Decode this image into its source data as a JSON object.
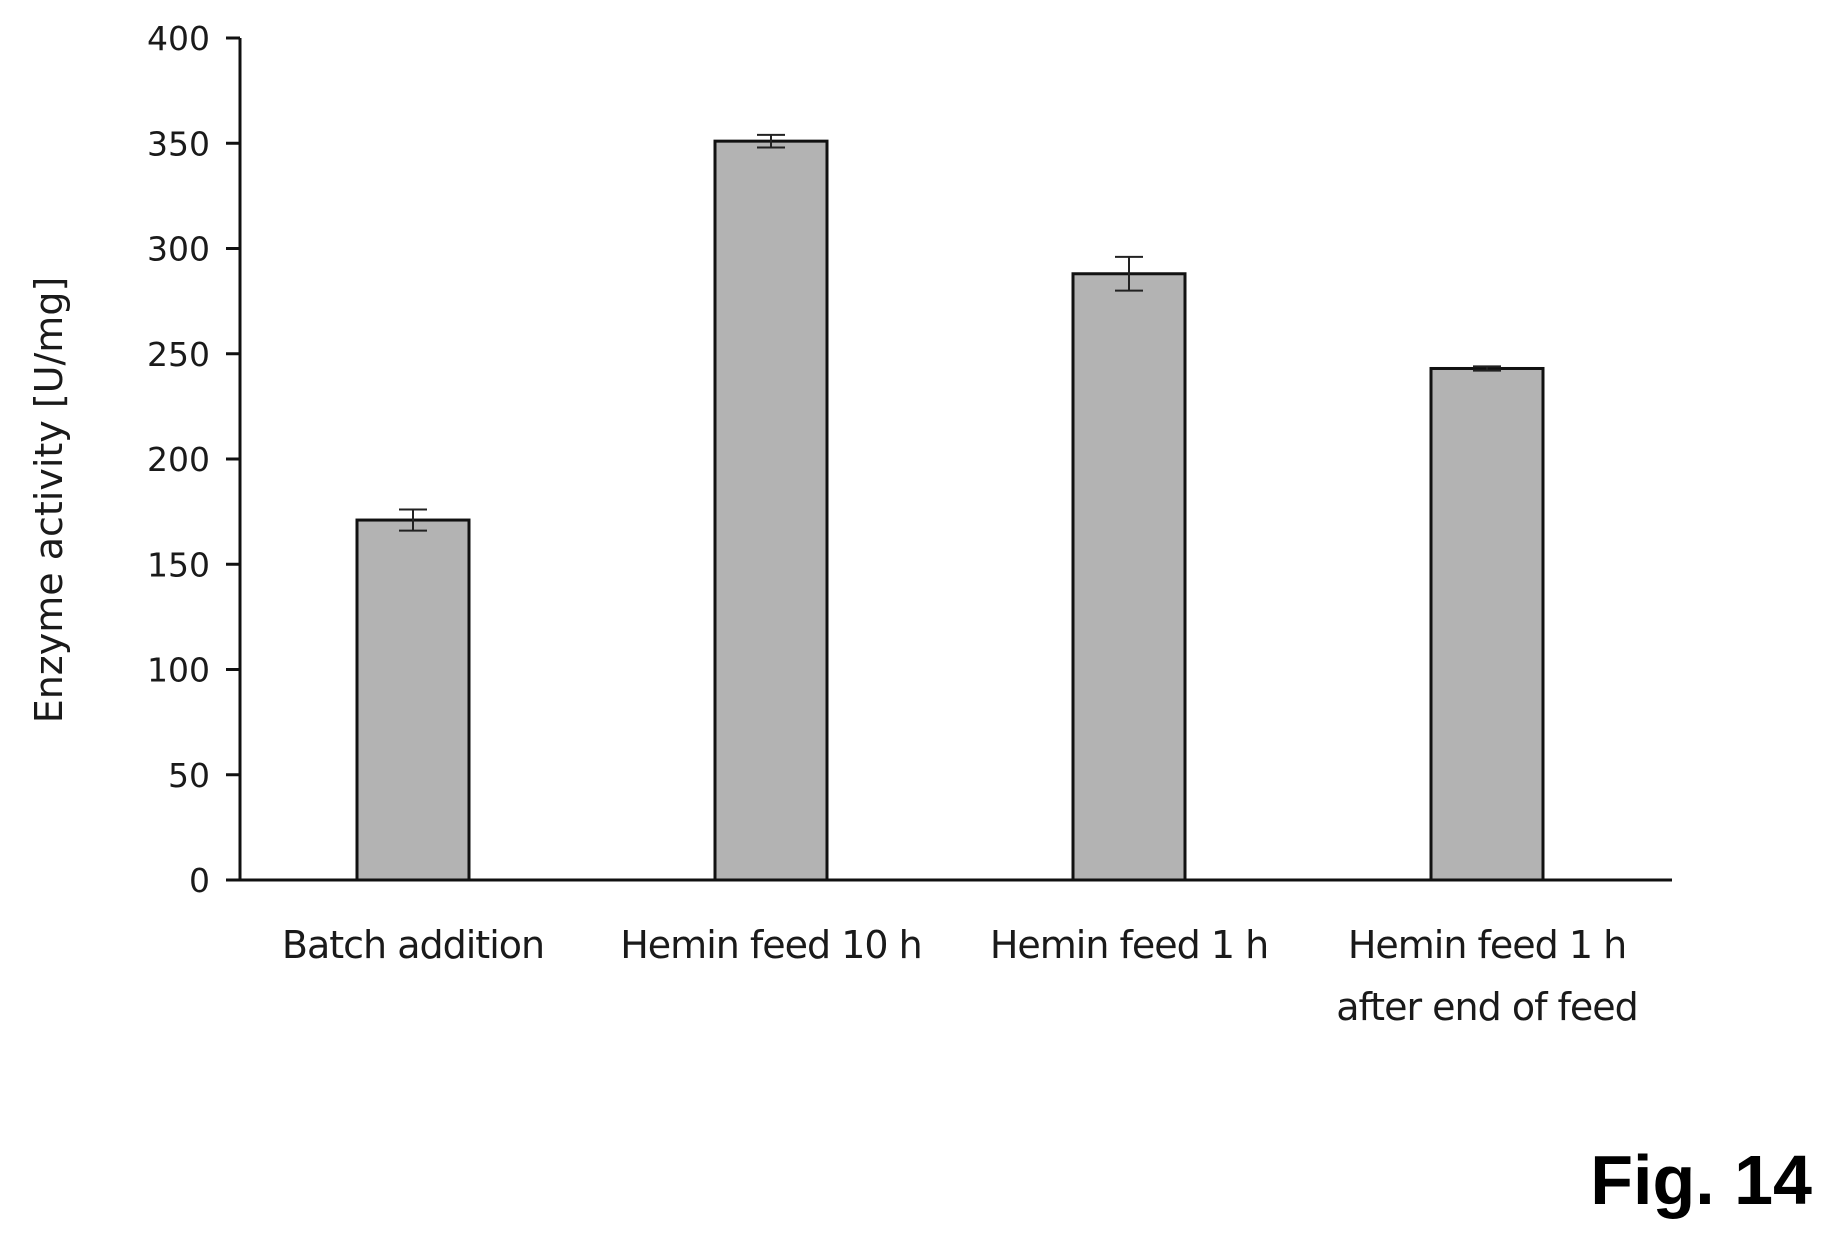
{
  "figure_label": "Fig. 14",
  "chart_data": {
    "type": "bar",
    "title": "",
    "xlabel": "",
    "ylabel": "Enzyme activity [U/mg]",
    "ylim": [
      0,
      400
    ],
    "yticks": [
      0,
      50,
      100,
      150,
      200,
      250,
      300,
      350,
      400
    ],
    "grid": false,
    "categories": [
      [
        "Batch addition"
      ],
      [
        "Hemin feed 10 h"
      ],
      [
        "Hemin feed 1 h"
      ],
      [
        "Hemin feed 1 h",
        "after end of feed"
      ]
    ],
    "values": [
      171,
      351,
      288,
      243
    ],
    "error": [
      5,
      3,
      8,
      1
    ],
    "colors": {
      "bar_fill": "#b3b3b3",
      "bar_stroke": "#111111",
      "axis": "#111111"
    }
  }
}
